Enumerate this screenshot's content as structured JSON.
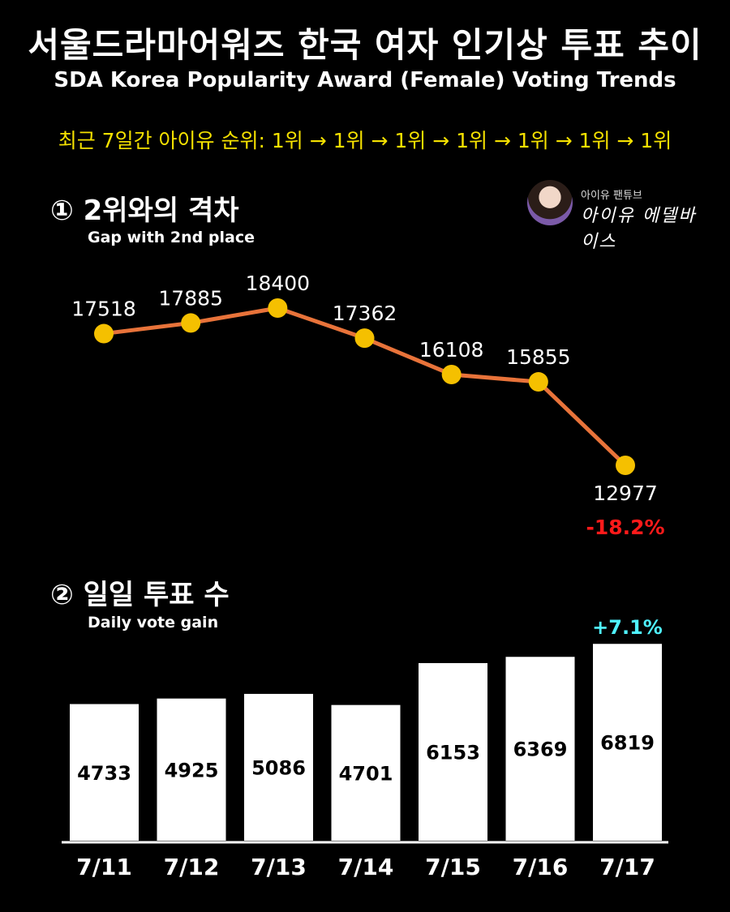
{
  "header": {
    "title_ko": "서울드라마어워즈 한국 여자 인기상 투표 추이",
    "title_en": "SDA Korea Popularity Award (Female) Voting Trends",
    "rank_line": "최근 7일간 아이유 순위: 1위 → 1위 → 1위 → 1위 → 1위 → 1위 → 1위"
  },
  "badge": {
    "small": "아이유 팬튜브",
    "big": "아이유 에델바이스"
  },
  "section1": {
    "title": "① 2위와의 격차",
    "subtitle": "Gap with 2nd place"
  },
  "section2": {
    "title": "② 일일 투표 수",
    "subtitle": "Daily vote gain"
  },
  "chart_data": [
    {
      "type": "line",
      "title": "① 2위와의 격차",
      "subtitle": "Gap with 2nd place",
      "x": [
        "7/11",
        "7/12",
        "7/13",
        "7/14",
        "7/15",
        "7/16",
        "7/17"
      ],
      "values": [
        17518,
        17885,
        18400,
        17362,
        16108,
        15855,
        12977
      ],
      "annotation": "-18.2%",
      "colors": {
        "line": "#e8733a",
        "point": "#f5c000",
        "annotation": "#ff1a1a"
      },
      "grid": false
    },
    {
      "type": "bar",
      "title": "② 일일 투표 수",
      "subtitle": "Daily vote gain",
      "categories": [
        "7/11",
        "7/12",
        "7/13",
        "7/14",
        "7/15",
        "7/16",
        "7/17"
      ],
      "values": [
        4733,
        4925,
        5086,
        4701,
        6153,
        6369,
        6819
      ],
      "annotation": "+7.1%",
      "colors": {
        "bar": "#ffffff",
        "label": "#000000",
        "annotation": "#4ff2ff"
      },
      "grid": false
    }
  ]
}
